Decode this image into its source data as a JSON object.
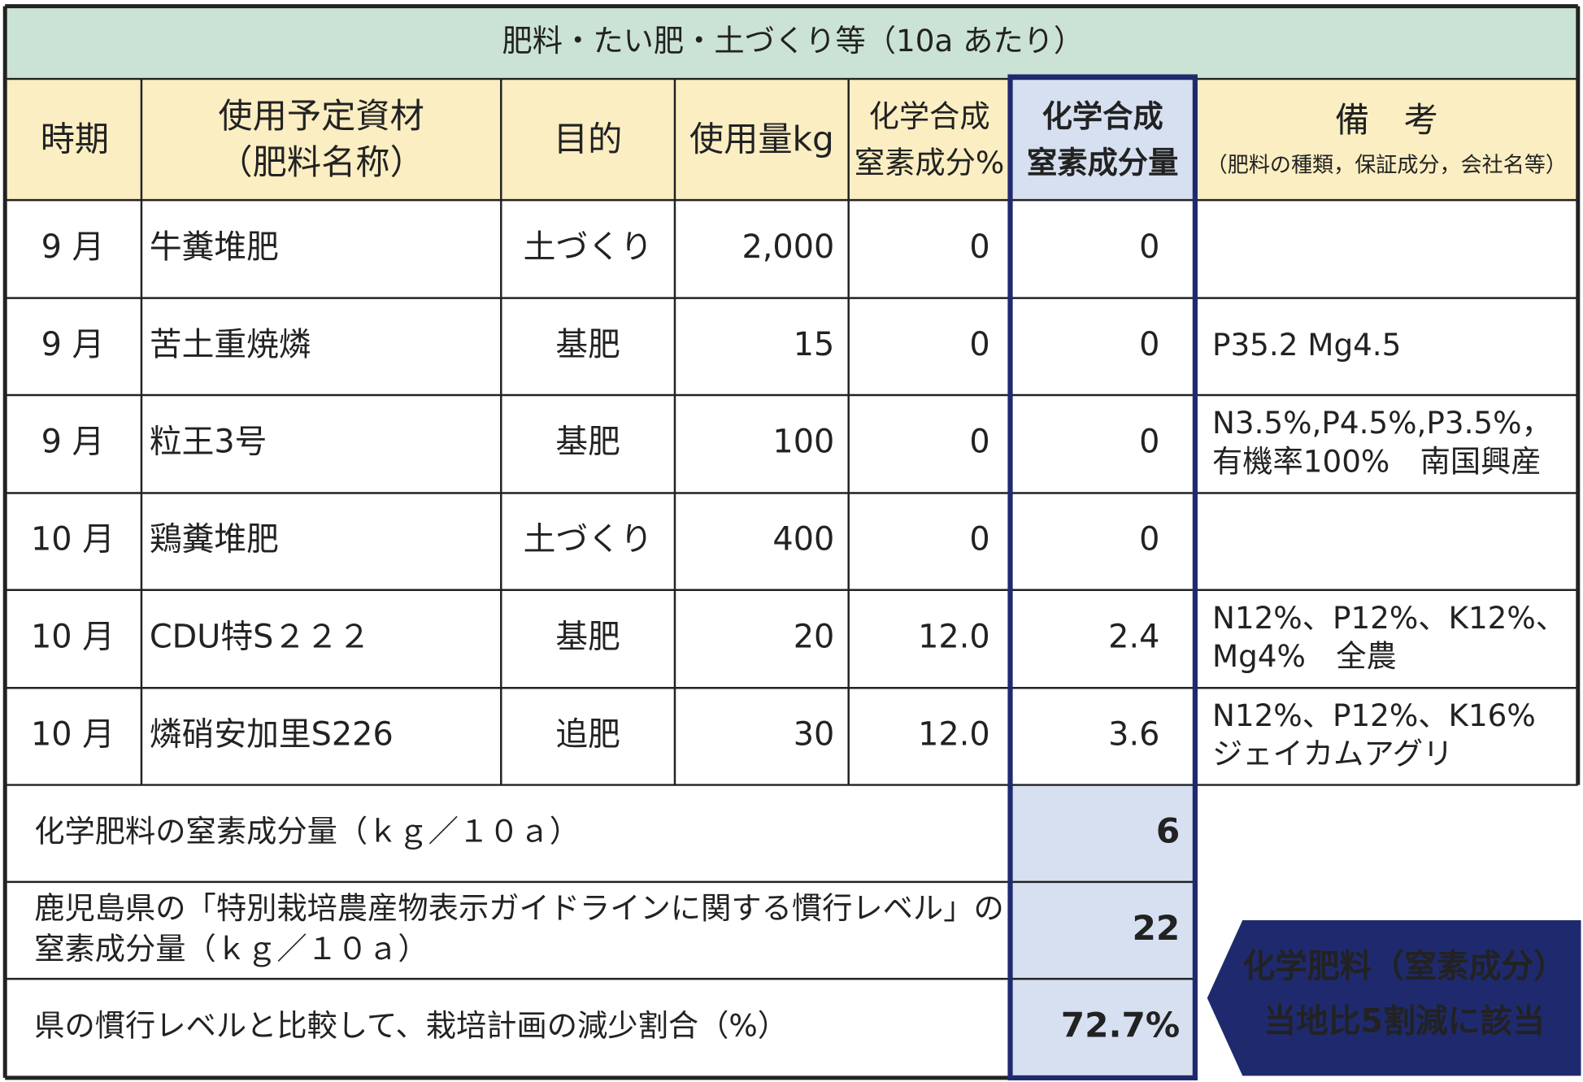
{
  "title": "肥料・たい肥・土づくり等（10a あたり）",
  "table": {
    "headers": [
      [
        "時期"
      ],
      [
        "使用予定資材",
        "（肥料名称）"
      ],
      [
        "目的"
      ],
      [
        "使用量kg"
      ],
      [
        "化学合成",
        "窒素成分%"
      ],
      [
        "化学合成",
        "窒素成分量"
      ],
      [
        "備　考",
        "（肥料の種類，保証成分，会社名等）"
      ]
    ],
    "rows": [
      [
        "9 月",
        "牛糞堆肥",
        "土づくり",
        "2,000",
        "0",
        "0",
        []
      ],
      [
        "9 月",
        "苦土重焼燐",
        "基肥",
        "15",
        "0",
        "0",
        [
          "P35.2 Mg4.5"
        ]
      ],
      [
        "9 月",
        "粒王3号",
        "基肥",
        "100",
        "0",
        "0",
        [
          "N3.5%,P4.5%,P3.5%，",
          "有機率100%　南国興産"
        ]
      ],
      [
        "10 月",
        "鶏糞堆肥",
        "土づくり",
        "400",
        "0",
        "0",
        []
      ],
      [
        "10 月",
        "CDU特S２２２",
        "基肥",
        "20",
        "12.0",
        "2.4",
        [
          "N12%、P12%、K12%、",
          "Mg4%　全農"
        ]
      ],
      [
        "10 月",
        "燐硝安加里S226",
        "追肥",
        "30",
        "12.0",
        "3.6",
        [
          "N12%、P12%、K16%",
          "ジェイカムアグリ"
        ]
      ]
    ],
    "summary": [
      {
        "label": [
          "化学肥料の窒素成分量（ｋｇ／１０ａ）"
        ],
        "value": "6"
      },
      {
        "label": [
          "鹿児島県の「特別栽培農産物表示ガイドラインに関する慣行レベル」の",
          "窒素成分量（ｋｇ／１０ａ）"
        ],
        "value": "22"
      },
      {
        "label": [
          "県の慣行レベルと比較して、栽培計画の減少割合（%）"
        ],
        "value": "72.7%"
      }
    ]
  },
  "callout": [
    "化学肥料（窒素成分）",
    "当地比5割減に該当"
  ]
}
